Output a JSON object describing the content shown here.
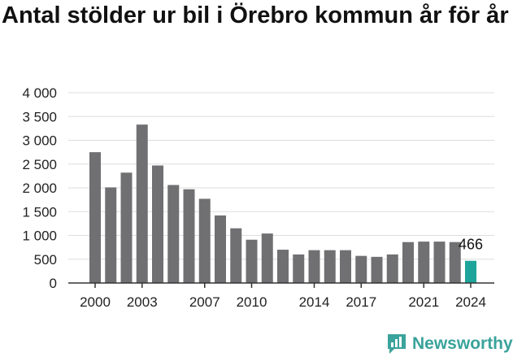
{
  "chart_data": {
    "type": "bar",
    "title": "Antal stölder ur bil i Örebro kommun år för år",
    "xlabel": "",
    "ylabel": "",
    "categories": [
      "2000",
      "2001",
      "2002",
      "2003",
      "2004",
      "2005",
      "2006",
      "2007",
      "2008",
      "2009",
      "2010",
      "2011",
      "2012",
      "2013",
      "2014",
      "2015",
      "2016",
      "2017",
      "2018",
      "2019",
      "2020",
      "2021",
      "2022",
      "2023",
      "2024"
    ],
    "values": [
      2750,
      2010,
      2320,
      3330,
      2470,
      2060,
      1970,
      1770,
      1420,
      1150,
      910,
      1040,
      700,
      600,
      690,
      690,
      690,
      570,
      550,
      600,
      860,
      870,
      870,
      860,
      466
    ],
    "x_tick_labels": [
      "2000",
      "2003",
      "2007",
      "2010",
      "2014",
      "2017",
      "2021",
      "2024"
    ],
    "y_tick_labels": [
      "0",
      "500",
      "1 000",
      "1 500",
      "2 000",
      "2 500",
      "3 000",
      "3 500",
      "4 000"
    ],
    "y_ticks": [
      0,
      500,
      1000,
      1500,
      2000,
      2500,
      3000,
      3500,
      4000
    ],
    "ylim": [
      0,
      4000
    ],
    "grid": true,
    "legend": "none",
    "highlight": {
      "category": "2024",
      "label": "466"
    },
    "colors": {
      "bar": "#707073",
      "highlight": "#1ea49a",
      "grid": "#dddddd",
      "axis": "#333333"
    }
  },
  "branding": {
    "name": "Newsworthy",
    "icon": "newsworthy-logo-icon",
    "color": "#3aa39b"
  }
}
